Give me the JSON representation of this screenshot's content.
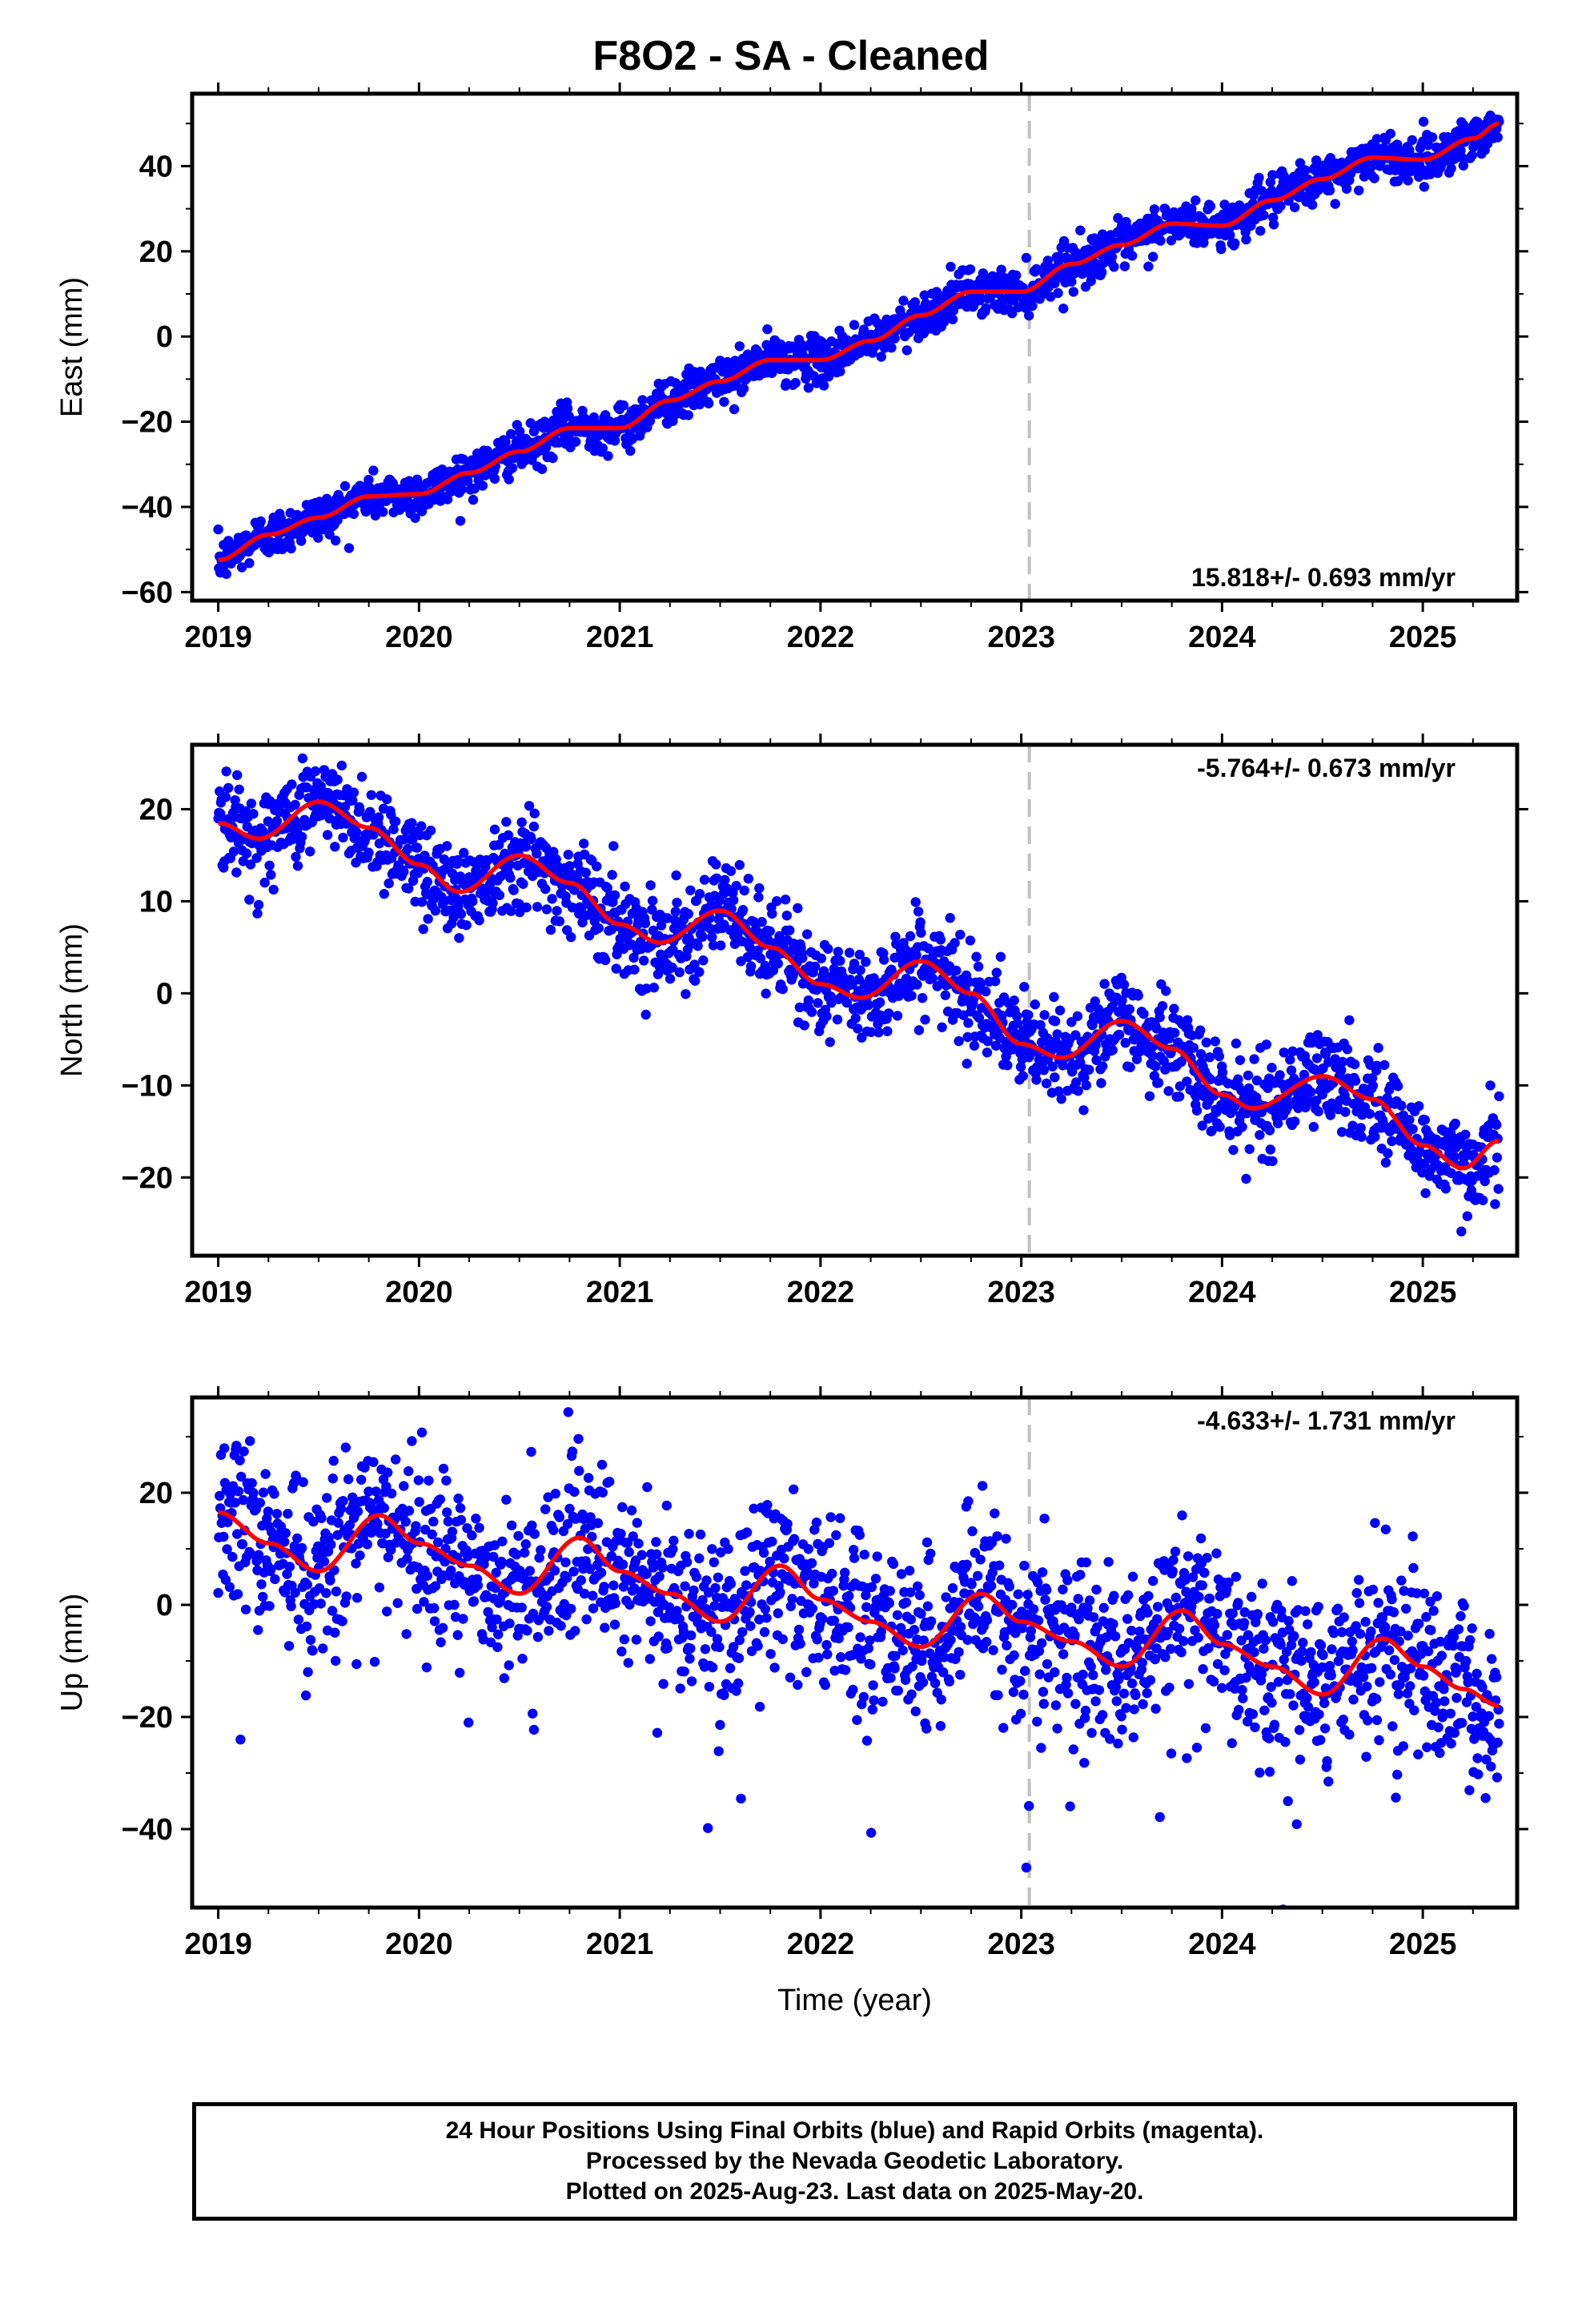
{
  "title": "F8O2  - SA - Cleaned",
  "footer": {
    "line1": "24 Hour Positions Using Final Orbits (blue) and Rapid Orbits (magenta).",
    "line2": "Processed by the Nevada Geodetic Laboratory.",
    "line3": "Plotted on 2025-Aug-23. Last data on 2025-May-20."
  },
  "colors": {
    "points": "#0000ff",
    "fit": "#ff0000",
    "reference_line": "#c0c0c0",
    "axes": "#000000"
  },
  "chart_data": [
    {
      "type": "scatter",
      "ylabel": "East (mm)",
      "xlabel": "",
      "xlim": [
        2018.87,
        2025.47
      ],
      "ylim": [
        -62,
        57
      ],
      "xticks": [
        2019,
        2020,
        2021,
        2022,
        2023,
        2024,
        2025
      ],
      "yticks": [
        -60,
        -40,
        -20,
        0,
        20,
        40
      ],
      "reference_line_x": 2023.04,
      "rate_label": "15.818+/- 0.693 mm/yr",
      "rate_label_position": "bottom-right",
      "series": [
        {
          "values": [
            [
              2019.0,
              -52.5
            ],
            [
              2019.25,
              -46.5
            ],
            [
              2019.5,
              -42.5
            ],
            [
              2019.75,
              -37.5
            ],
            [
              2020.0,
              -37
            ],
            [
              2020.25,
              -32
            ],
            [
              2020.5,
              -27
            ],
            [
              2020.75,
              -21.5
            ],
            [
              2021.0,
              -21.5
            ],
            [
              2021.25,
              -15
            ],
            [
              2021.5,
              -10.5
            ],
            [
              2021.75,
              -5.5
            ],
            [
              2022.0,
              -5.5
            ],
            [
              2022.25,
              -1
            ],
            [
              2022.5,
              5
            ],
            [
              2022.75,
              10.5
            ],
            [
              2023.0,
              10.5
            ],
            [
              2023.25,
              17
            ],
            [
              2023.5,
              21.5
            ],
            [
              2023.75,
              26.5
            ],
            [
              2024.0,
              26
            ],
            [
              2024.25,
              32
            ],
            [
              2024.5,
              37
            ],
            [
              2024.75,
              42
            ],
            [
              2025.0,
              41.5
            ],
            [
              2025.25,
              46.5
            ],
            [
              2025.38,
              50
            ]
          ]
        }
      ]
    },
    {
      "type": "scatter",
      "ylabel": "North (mm)",
      "xlabel": "",
      "xlim": [
        2018.87,
        2025.47
      ],
      "ylim": [
        -28.5,
        27
      ],
      "xticks": [
        2019,
        2020,
        2021,
        2022,
        2023,
        2024,
        2025
      ],
      "yticks": [
        -20,
        -10,
        0,
        10,
        20
      ],
      "reference_line_x": 2023.04,
      "rate_label": "-5.764+/- 0.673 mm/yr",
      "rate_label_position": "top-right",
      "series": [
        {
          "values": [
            [
              2019.0,
              18.5
            ],
            [
              2019.2,
              16.8
            ],
            [
              2019.5,
              20.8
            ],
            [
              2019.75,
              18
            ],
            [
              2020.0,
              14
            ],
            [
              2020.2,
              11
            ],
            [
              2020.5,
              15
            ],
            [
              2020.75,
              12
            ],
            [
              2021.0,
              7.5
            ],
            [
              2021.2,
              5.5
            ],
            [
              2021.5,
              9
            ],
            [
              2021.75,
              5
            ],
            [
              2022.0,
              1
            ],
            [
              2022.2,
              -0.5
            ],
            [
              2022.5,
              3.5
            ],
            [
              2022.75,
              0
            ],
            [
              2023.0,
              -5.5
            ],
            [
              2023.2,
              -7
            ],
            [
              2023.5,
              -3
            ],
            [
              2023.75,
              -6
            ],
            [
              2024.0,
              -11
            ],
            [
              2024.15,
              -12.5
            ],
            [
              2024.5,
              -9
            ],
            [
              2024.75,
              -11.5
            ],
            [
              2025.0,
              -16.5
            ],
            [
              2025.2,
              -19
            ],
            [
              2025.38,
              -16
            ]
          ]
        }
      ]
    },
    {
      "type": "scatter",
      "ylabel": "Up (mm)",
      "xlabel": "Time (year)",
      "xlim": [
        2018.87,
        2025.47
      ],
      "ylim": [
        -54,
        37
      ],
      "xticks": [
        2019,
        2020,
        2021,
        2022,
        2023,
        2024,
        2025
      ],
      "yticks": [
        -40,
        -20,
        0,
        20
      ],
      "reference_line_x": 2023.04,
      "rate_label": "-4.633+/- 1.731 mm/yr",
      "rate_label_position": "top-right",
      "series": [
        {
          "values": [
            [
              2019.0,
              16.5
            ],
            [
              2019.25,
              11
            ],
            [
              2019.5,
              6
            ],
            [
              2019.8,
              16
            ],
            [
              2020.0,
              11
            ],
            [
              2020.25,
              7
            ],
            [
              2020.5,
              2
            ],
            [
              2020.8,
              12
            ],
            [
              2021.0,
              6
            ],
            [
              2021.25,
              2
            ],
            [
              2021.5,
              -3
            ],
            [
              2021.8,
              7
            ],
            [
              2022.0,
              1
            ],
            [
              2022.25,
              -3
            ],
            [
              2022.5,
              -7.5
            ],
            [
              2022.8,
              2
            ],
            [
              2023.0,
              -3
            ],
            [
              2023.25,
              -6.5
            ],
            [
              2023.5,
              -11
            ],
            [
              2023.8,
              -1
            ],
            [
              2024.0,
              -7
            ],
            [
              2024.25,
              -11
            ],
            [
              2024.5,
              -16
            ],
            [
              2024.8,
              -6
            ],
            [
              2025.0,
              -11
            ],
            [
              2025.2,
              -15
            ],
            [
              2025.38,
              -18
            ]
          ]
        }
      ]
    }
  ]
}
